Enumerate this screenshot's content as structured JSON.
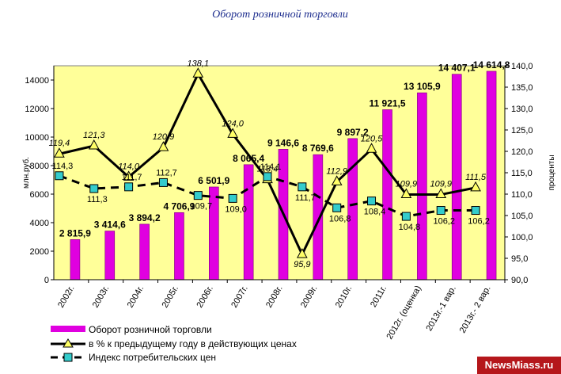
{
  "chart_data": {
    "type": "bar",
    "title": "Оборот розничной торговли",
    "categories": [
      "2002г.",
      "2003г.",
      "2004г.",
      "2005г.",
      "2006г.",
      "2007г.",
      "2008г.",
      "2009г.",
      "2010г.",
      "2011г.",
      "2012г. (оценка)",
      "2013г.-1 вар.",
      "2013г.- 2 вар."
    ],
    "y_left": {
      "label": "млн.руб.",
      "ticks": [
        "0",
        "2000",
        "4000",
        "6000",
        "8000",
        "10000",
        "12000",
        "14000"
      ],
      "range": [
        0,
        15000
      ]
    },
    "y_right": {
      "label": "проценты",
      "ticks": [
        "90,0",
        "95,0",
        "100,0",
        "105,0",
        "110,0",
        "115,0",
        "120,0",
        "125,0",
        "130,0",
        "135,0",
        "140,0"
      ],
      "range": [
        90,
        140
      ]
    },
    "series": [
      {
        "name": "Оборот розничной торговли",
        "type": "bar",
        "axis": "left",
        "color": "#e000e0",
        "values": [
          2815.9,
          3414.6,
          3894.2,
          4706.9,
          6501.9,
          8065.4,
          9146.6,
          8769.6,
          9897.2,
          11921.5,
          13105.9,
          14407.1,
          14614.8
        ],
        "labels": [
          "2 815,9",
          "3 414,6",
          "3 894,2",
          "4 706,9",
          "6 501,9",
          "8 065,4",
          "9 146,6",
          "8 769,6",
          "9 897,2",
          "11 921,5",
          "13 105,9",
          "14 407,1",
          "14 614,8"
        ]
      },
      {
        "name": "в % к предыдущему году в действующих ценах",
        "type": "line",
        "axis": "right",
        "color": "#000000",
        "marker": "triangle",
        "marker_color": "#ffff66",
        "values": [
          119.4,
          121.3,
          114.0,
          120.9,
          138.1,
          124.0,
          113.4,
          95.9,
          112.9,
          120.5,
          109.9,
          109.9,
          111.5
        ],
        "labels": [
          "119,4",
          "121,3",
          "114,0",
          "120,9",
          "138,1",
          "124,0",
          "113,4",
          "95,9",
          "112,9",
          "120,5",
          "109,9",
          "109,9",
          "111,5"
        ]
      },
      {
        "name": "Индекс потребительских цен",
        "type": "line",
        "axis": "right",
        "color": "#000000",
        "dash": true,
        "marker": "square",
        "marker_color": "#33cccc",
        "values": [
          114.3,
          111.3,
          111.7,
          112.7,
          109.7,
          109.0,
          114.1,
          111.7,
          106.8,
          108.4,
          104.8,
          106.2,
          106.2
        ],
        "labels": [
          "114,3",
          "111,3",
          "111,7",
          "112,7",
          "109,7",
          "109,0",
          "114,1",
          "111,7",
          "106,8",
          "108,4",
          "104,8",
          "106,2",
          "106,2"
        ]
      }
    ],
    "plot_background": "#ffff99",
    "legend_position": "bottom-left"
  },
  "watermark": "NewsMiass.ru"
}
